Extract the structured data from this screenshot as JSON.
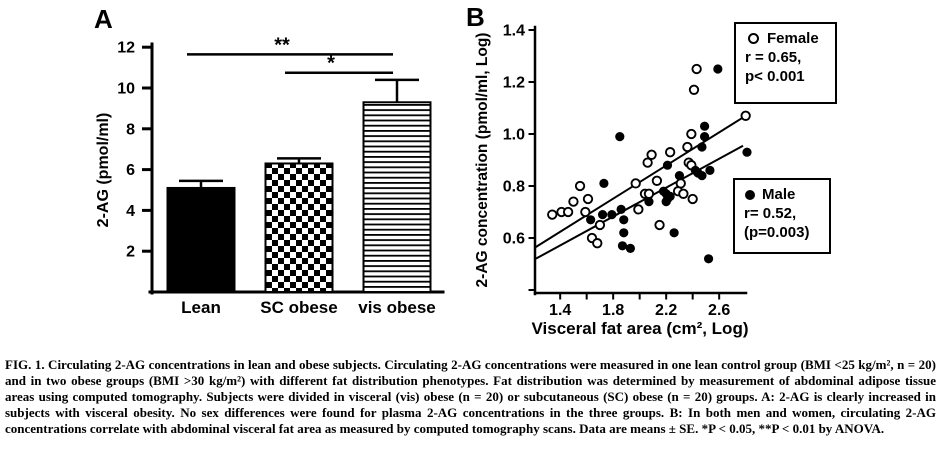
{
  "chart_data": [
    {
      "type": "bar",
      "panel": "A",
      "title": "",
      "ylabel": "2-AG (pmol/ml)",
      "categories": [
        "Lean",
        "SC obese",
        "vis obese"
      ],
      "values": [
        5.1,
        6.3,
        9.3
      ],
      "errors": [
        0.35,
        0.25,
        1.1
      ],
      "patterns": [
        "solid",
        "checker",
        "hlines"
      ],
      "yticks": [
        2,
        4,
        6,
        8,
        10,
        12
      ],
      "ylim": [
        0,
        12.3
      ],
      "significance": [
        {
          "from": 0,
          "to": 2,
          "label": "**",
          "y": 11.65
        },
        {
          "from": 1,
          "to": 2,
          "label": "*",
          "y": 10.75
        }
      ]
    },
    {
      "type": "scatter",
      "panel": "B",
      "xlabel": "Visceral fat area (cm², Log)",
      "ylabel": "2-AG concentration (pmol/ml, Log)",
      "xlim": [
        1.21,
        2.82
      ],
      "ylim": [
        0.39,
        1.41
      ],
      "xticks": [
        {
          "v": 1.4,
          "label": "1.4"
        },
        {
          "v": 1.6,
          "label": ""
        },
        {
          "v": 1.8,
          "label": "1.8"
        },
        {
          "v": 2.0,
          "label": ""
        },
        {
          "v": 2.2,
          "label": "2.2"
        },
        {
          "v": 2.4,
          "label": ""
        },
        {
          "v": 2.6,
          "label": "2.6"
        }
      ],
      "yticks": [
        {
          "v": 1.4,
          "label": "1.4"
        },
        {
          "v": 1.2,
          "label": "1.2"
        },
        {
          "v": 1.0,
          "label": "1.0"
        },
        {
          "v": 0.8,
          "label": "0.8"
        },
        {
          "v": 0.6,
          "label": "0.6"
        },
        {
          "v": 0.4,
          "label": ""
        }
      ],
      "series": [
        {
          "name": "Female",
          "marker": "open",
          "stats": [
            "r = 0.65,",
            "p< 0.001"
          ],
          "fit_line": {
            "x1": 1.215,
            "y1": 0.565,
            "x2": 2.8,
            "y2": 1.07
          },
          "points": [
            [
              1.34,
              0.69
            ],
            [
              1.41,
              0.7
            ],
            [
              1.46,
              0.7
            ],
            [
              1.5,
              0.74
            ],
            [
              1.55,
              0.8
            ],
            [
              1.59,
              0.7
            ],
            [
              1.61,
              0.75
            ],
            [
              1.64,
              0.6
            ],
            [
              1.68,
              0.58
            ],
            [
              1.7,
              0.65
            ],
            [
              1.97,
              0.81
            ],
            [
              1.99,
              0.71
            ],
            [
              2.04,
              0.77
            ],
            [
              2.06,
              0.89
            ],
            [
              2.07,
              0.77
            ],
            [
              2.09,
              0.92
            ],
            [
              2.13,
              0.82
            ],
            [
              2.15,
              0.65
            ],
            [
              2.23,
              0.93
            ],
            [
              2.29,
              0.78
            ],
            [
              2.31,
              0.81
            ],
            [
              2.33,
              0.77
            ],
            [
              2.36,
              0.95
            ],
            [
              2.37,
              0.89
            ],
            [
              2.39,
              0.88
            ],
            [
              2.39,
              1.0
            ],
            [
              2.4,
              0.75
            ],
            [
              2.41,
              1.17
            ],
            [
              2.43,
              1.25
            ],
            [
              2.8,
              1.07
            ]
          ]
        },
        {
          "name": "Male",
          "marker": "filled",
          "stats": [
            "r= 0.52,",
            "(p=0.003)"
          ],
          "fit_line": {
            "x1": 1.215,
            "y1": 0.52,
            "x2": 2.78,
            "y2": 0.955
          },
          "points": [
            [
              1.63,
              0.67
            ],
            [
              1.72,
              0.69
            ],
            [
              1.73,
              0.81
            ],
            [
              1.79,
              0.69
            ],
            [
              1.85,
              0.99
            ],
            [
              1.86,
              0.71
            ],
            [
              1.87,
              0.57
            ],
            [
              1.88,
              0.67
            ],
            [
              1.88,
              0.62
            ],
            [
              1.93,
              0.56
            ],
            [
              2.07,
              0.74
            ],
            [
              2.18,
              0.78
            ],
            [
              2.2,
              0.74
            ],
            [
              2.2,
              0.77
            ],
            [
              2.21,
              0.75
            ],
            [
              2.21,
              0.88
            ],
            [
              2.23,
              0.76
            ],
            [
              2.26,
              0.62
            ],
            [
              2.3,
              0.84
            ],
            [
              2.42,
              0.86
            ],
            [
              2.44,
              0.85
            ],
            [
              2.47,
              0.84
            ],
            [
              2.47,
              0.95
            ],
            [
              2.49,
              0.99
            ],
            [
              2.49,
              1.03
            ],
            [
              2.52,
              0.52
            ],
            [
              2.53,
              0.86
            ],
            [
              2.59,
              1.25
            ],
            [
              2.81,
              0.93
            ]
          ]
        }
      ]
    }
  ],
  "caption": {
    "text": "FIG. 1. Circulating 2-AG concentrations in lean and obese subjects. Circulating 2-AG concentrations were measured in one lean control group (BMI <25 kg/m², n = 20) and in two obese groups (BMI >30 kg/m²) with different fat distribution phenotypes. Fat distribution was determined by measurement of abdominal adipose tissue areas using computed tomography. Subjects were divided in visceral (vis) obese (n = 20) or subcutaneous (SC) obese (n = 20) groups. A: 2-AG is clearly increased in subjects with visceral obesity. No sex differences were found for plasma 2-AG concentrations in the three groups. B: In both men and women, circulating 2-AG concentrations correlate with abdominal visceral fat area as measured by computed tomography scans. Data are means ± SE. *P < 0.05, **P < 0.01 by ANOVA."
  }
}
